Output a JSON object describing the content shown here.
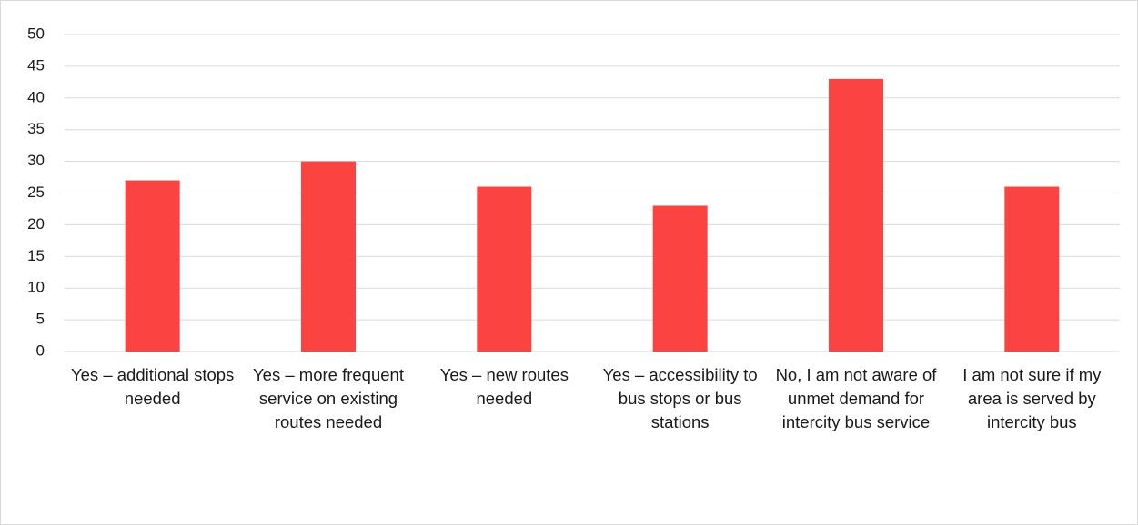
{
  "chart_data": {
    "type": "bar",
    "categories": [
      "Yes – additional stops needed",
      "Yes – more frequent service on existing routes needed",
      "Yes – new routes needed",
      "Yes – accessibility to bus stops or bus stations",
      "No, I am not aware of unmet demand for intercity bus service",
      "I am not sure if my area is served by intercity bus"
    ],
    "values": [
      27,
      30,
      26,
      23,
      43,
      26
    ],
    "color": "#fb4441",
    "ylim": [
      0,
      50
    ],
    "yticks": [
      0,
      5,
      10,
      15,
      20,
      25,
      30,
      35,
      40,
      45,
      50
    ],
    "grid": true
  }
}
